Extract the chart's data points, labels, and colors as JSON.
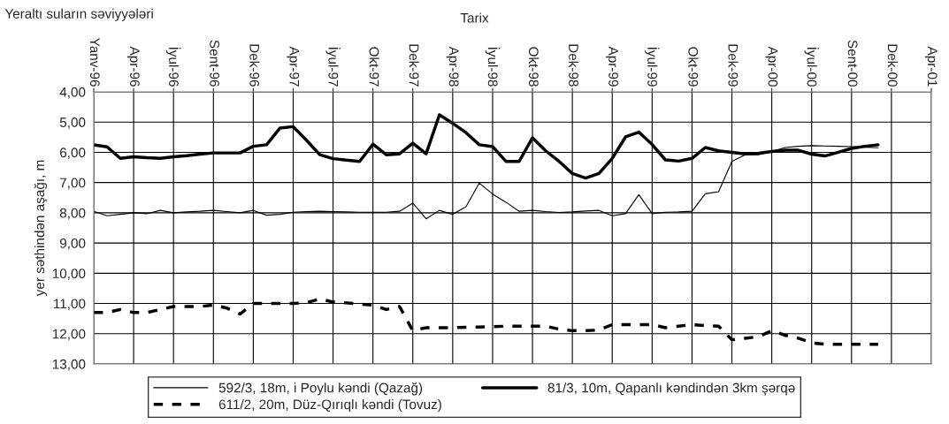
{
  "chart_data": {
    "type": "line",
    "title": "Yeraltı suların səviyyələri",
    "xlabel": "Tarix",
    "ylabel": "yer səthindən aşağı, m",
    "categories": [
      "Yanv-96",
      null,
      null,
      "Apr-96",
      null,
      null,
      "İyul-96",
      null,
      null,
      "Sent-96",
      null,
      null,
      "Dek-96",
      null,
      null,
      "Apr-97",
      null,
      null,
      "İyul-97",
      null,
      null,
      "Okt-97",
      null,
      null,
      "Dek-97",
      null,
      null,
      "Apr-98",
      null,
      null,
      "İyul-98",
      null,
      null,
      "Okt-98",
      null,
      null,
      "Dek-98",
      null,
      null,
      "Apr-99",
      null,
      null,
      "İyul-99",
      null,
      null,
      "Okt-99",
      null,
      null,
      "Dek-99",
      null,
      null,
      "Apr-00",
      null,
      null,
      "İyul-00",
      null,
      null,
      "Sent-00",
      null,
      null,
      "Dek-00",
      null,
      null,
      "Apr-01"
    ],
    "ylim": [
      13,
      4
    ],
    "yticks": [
      {
        "value": 4,
        "label": "4,00"
      },
      {
        "value": 5,
        "label": "5,00"
      },
      {
        "value": 6,
        "label": "6,00"
      },
      {
        "value": 7,
        "label": "7,00"
      },
      {
        "value": 8,
        "label": "8,00"
      },
      {
        "value": 9,
        "label": "9,00"
      },
      {
        "value": 10,
        "label": "10,00"
      },
      {
        "value": 11,
        "label": "11,00"
      },
      {
        "value": 12,
        "label": "12,00"
      },
      {
        "value": 13,
        "label": "13,00"
      }
    ],
    "grid": true,
    "legend": "bottom",
    "marker": "none",
    "series": [
      {
        "name": "592/3, 18m, i Poylu kəndi (Qazağ)",
        "color": "#000000",
        "line_style": "solid",
        "values": [
          7.95,
          8.1,
          8.05,
          8.0,
          8.03,
          7.92,
          8.0,
          7.97,
          7.95,
          7.92,
          7.96,
          8.0,
          7.92,
          8.08,
          8.05,
          7.98,
          7.96,
          7.95,
          7.96,
          7.97,
          7.98,
          7.98,
          7.98,
          7.95,
          7.68,
          8.2,
          7.92,
          8.05,
          7.8,
          7.02,
          7.38,
          7.65,
          7.95,
          7.92,
          7.96,
          7.99,
          7.97,
          7.94,
          7.92,
          8.1,
          8.03,
          7.4,
          8.03,
          7.98,
          7.97,
          7.95,
          7.37,
          7.3,
          6.3,
          6.08,
          6.08,
          5.97,
          5.84,
          5.8,
          5.78,
          5.79,
          5.8,
          5.81,
          5.83,
          5.85,
          null,
          null,
          null,
          null
        ]
      },
      {
        "name": "611/2, 20m, Düz-Qırıqlı kəndi (Tovuz)",
        "color": "#000000",
        "line_style": "dashed",
        "values": [
          11.3,
          11.3,
          11.2,
          11.3,
          11.3,
          11.2,
          11.1,
          11.1,
          11.1,
          11.05,
          11.15,
          11.35,
          11.0,
          11.0,
          11.0,
          11.0,
          10.97,
          10.85,
          10.95,
          10.98,
          11.02,
          11.05,
          11.2,
          11.1,
          11.9,
          11.8,
          11.8,
          11.8,
          11.79,
          11.78,
          11.77,
          11.75,
          11.75,
          11.75,
          11.75,
          11.85,
          11.9,
          11.9,
          11.88,
          11.7,
          11.7,
          11.7,
          11.7,
          11.8,
          11.75,
          11.7,
          11.73,
          11.75,
          12.2,
          12.15,
          12.1,
          11.9,
          12.05,
          12.15,
          12.3,
          12.35,
          12.35,
          12.35,
          12.35,
          12.35,
          null,
          null,
          null,
          null
        ]
      },
      {
        "name": "81/3, 10m, Qapanlı kəndindən 3km şərqə",
        "color": "#000000",
        "line_style": "solid",
        "values": [
          5.75,
          5.82,
          6.2,
          6.15,
          6.18,
          6.2,
          6.15,
          6.11,
          6.06,
          6.02,
          6.02,
          6.02,
          5.8,
          5.75,
          5.2,
          5.15,
          5.6,
          6.08,
          6.21,
          6.26,
          6.3,
          5.73,
          6.08,
          6.05,
          5.7,
          6.05,
          4.76,
          5.04,
          5.35,
          5.75,
          5.81,
          6.3,
          6.3,
          5.52,
          5.95,
          6.3,
          6.7,
          6.85,
          6.7,
          6.2,
          5.49,
          5.33,
          5.74,
          6.25,
          6.29,
          6.2,
          5.84,
          5.95,
          6.0,
          6.05,
          6.03,
          5.97,
          5.93,
          5.93,
          6.06,
          6.12,
          6.0,
          5.87,
          5.8,
          5.75,
          null,
          null,
          null,
          null
        ]
      }
    ]
  }
}
